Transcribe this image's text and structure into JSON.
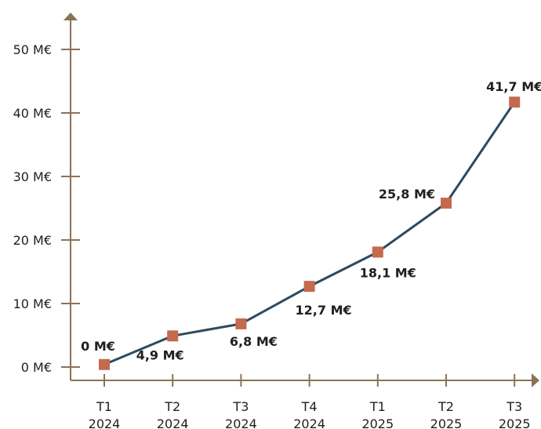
{
  "chart_data": {
    "type": "line",
    "categories": [
      [
        "T1",
        "2024"
      ],
      [
        "T2",
        "2024"
      ],
      [
        "T3",
        "2024"
      ],
      [
        "T4",
        "2024"
      ],
      [
        "T1",
        "2025"
      ],
      [
        "T2",
        "2025"
      ],
      [
        "T3",
        "2025"
      ]
    ],
    "values": [
      0.4,
      4.9,
      6.8,
      12.7,
      18.1,
      25.8,
      41.7
    ],
    "data_labels": [
      "0 M€",
      "4,9 M€",
      "6,8 M€",
      "12,7 M€",
      "18,1 M€",
      "25,8 M€",
      "41,7 M€"
    ],
    "y_ticks": [
      {
        "value": 0,
        "label": "0 M€"
      },
      {
        "value": 10,
        "label": "10 M€"
      },
      {
        "value": 20,
        "label": "20 M€"
      },
      {
        "value": 30,
        "label": "30 M€"
      },
      {
        "value": 40,
        "label": "40 M€"
      },
      {
        "value": 50,
        "label": "50 M€"
      }
    ],
    "ylim": [
      0,
      50
    ],
    "grid": false,
    "title": "",
    "xlabel": "",
    "ylabel": "",
    "colors": {
      "axis": "#8b7356",
      "line": "#2e4a5e",
      "marker": "#c46a4e",
      "text": "#1f1f1f"
    }
  }
}
